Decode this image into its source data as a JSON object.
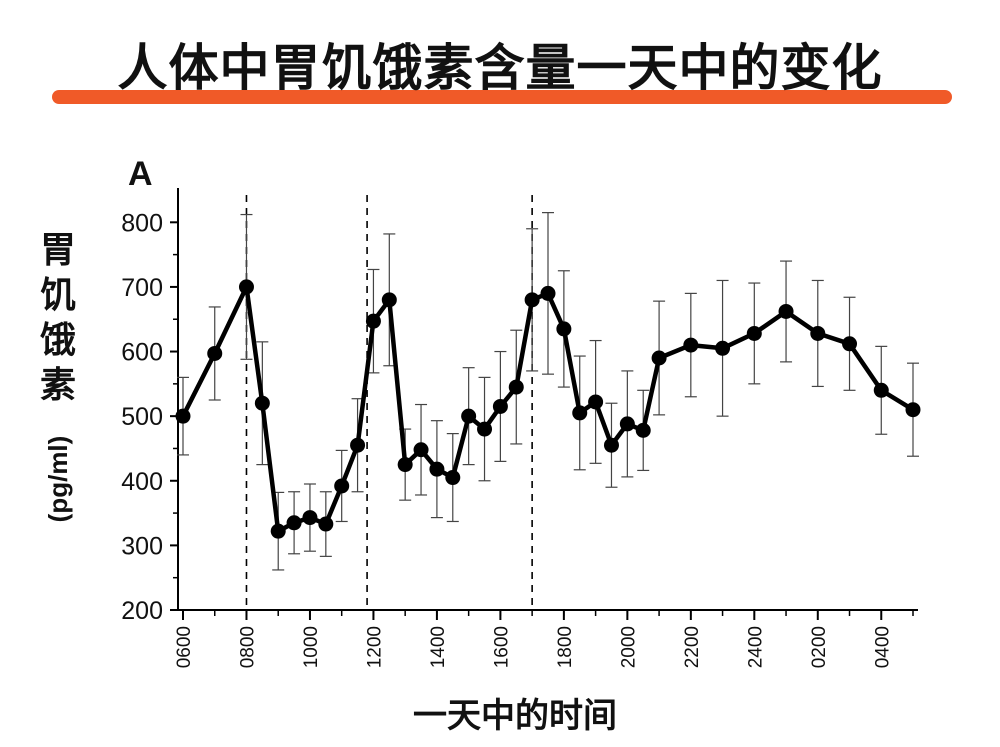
{
  "title": "人体中胃饥饿素含量一天中的变化",
  "panel_letter": "A",
  "colors": {
    "accent_underline": "#f05a28",
    "line": "#000000",
    "text": "#111111"
  },
  "chart_data": {
    "type": "line",
    "ylabel_main": "胃饥饿素",
    "ylabel_unit": "(pg/ml)",
    "xlabel": "一天中的时间",
    "ylim": [
      200,
      850
    ],
    "yticks": [
      200,
      300,
      400,
      500,
      600,
      700,
      800
    ],
    "xticks": [
      {
        "label": "0600",
        "x": 0
      },
      {
        "label": "0800",
        "x": 2
      },
      {
        "label": "1000",
        "x": 4
      },
      {
        "label": "1200",
        "x": 6
      },
      {
        "label": "1400",
        "x": 8
      },
      {
        "label": "1600",
        "x": 10
      },
      {
        "label": "1800",
        "x": 12
      },
      {
        "label": "2000",
        "x": 14
      },
      {
        "label": "2200",
        "x": 16
      },
      {
        "label": "2400",
        "x": 18
      },
      {
        "label": "0200",
        "x": 20
      },
      {
        "label": "0400",
        "x": 22
      }
    ],
    "xlim": [
      0,
      22
    ],
    "x_unit_note": "hours after 0600",
    "vlines": [
      2,
      5.8,
      11
    ],
    "series": [
      {
        "points": [
          {
            "x": 0,
            "y": 500,
            "err": 60
          },
          {
            "x": 1,
            "y": 597,
            "err": 72
          },
          {
            "x": 2,
            "y": 700,
            "err": 112
          },
          {
            "x": 2.5,
            "y": 520,
            "err": 95
          },
          {
            "x": 3,
            "y": 322,
            "err": 60
          },
          {
            "x": 3.5,
            "y": 335,
            "err": 48
          },
          {
            "x": 4,
            "y": 343,
            "err": 52
          },
          {
            "x": 4.5,
            "y": 333,
            "err": 50
          },
          {
            "x": 5,
            "y": 392,
            "err": 55
          },
          {
            "x": 5.5,
            "y": 455,
            "err": 72
          },
          {
            "x": 6,
            "y": 647,
            "err": 80
          },
          {
            "x": 6.5,
            "y": 680,
            "err": 102
          },
          {
            "x": 7,
            "y": 425,
            "err": 55
          },
          {
            "x": 7.5,
            "y": 448,
            "err": 70
          },
          {
            "x": 8,
            "y": 418,
            "err": 75
          },
          {
            "x": 8.5,
            "y": 405,
            "err": 68
          },
          {
            "x": 9,
            "y": 500,
            "err": 75
          },
          {
            "x": 9.5,
            "y": 480,
            "err": 80
          },
          {
            "x": 10,
            "y": 515,
            "err": 85
          },
          {
            "x": 10.5,
            "y": 545,
            "err": 88
          },
          {
            "x": 11,
            "y": 680,
            "err": 110
          },
          {
            "x": 11.5,
            "y": 690,
            "err": 125
          },
          {
            "x": 12,
            "y": 635,
            "err": 90
          },
          {
            "x": 12.5,
            "y": 505,
            "err": 88
          },
          {
            "x": 13,
            "y": 522,
            "err": 95
          },
          {
            "x": 13.5,
            "y": 455,
            "err": 65
          },
          {
            "x": 14,
            "y": 488,
            "err": 82
          },
          {
            "x": 14.5,
            "y": 478,
            "err": 62
          },
          {
            "x": 15,
            "y": 590,
            "err": 88
          },
          {
            "x": 16,
            "y": 610,
            "err": 80
          },
          {
            "x": 17,
            "y": 605,
            "err": 105
          },
          {
            "x": 18,
            "y": 628,
            "err": 78
          },
          {
            "x": 19,
            "y": 662,
            "err": 78
          },
          {
            "x": 20,
            "y": 628,
            "err": 82
          },
          {
            "x": 21,
            "y": 612,
            "err": 72
          },
          {
            "x": 22,
            "y": 540,
            "err": 68
          },
          {
            "x": 23,
            "y": 510,
            "err": 72
          }
        ]
      }
    ]
  }
}
